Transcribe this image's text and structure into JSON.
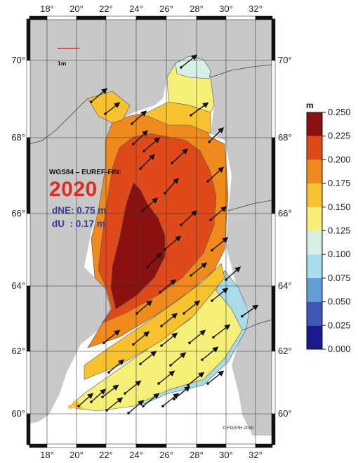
{
  "map": {
    "datum": "WGS84 – EUREF-FIN:",
    "year": "2020",
    "dne": "dNE: 0.75 m",
    "du": "dU  : 0.17 m",
    "scale_bar": "1m",
    "credit": "© FGI/PH 2020",
    "lon_ticks": [
      "18°",
      "20°",
      "22°",
      "24°",
      "26°",
      "28°",
      "30°",
      "32°"
    ],
    "lat_ticks": [
      "70°",
      "68°",
      "66°",
      "64°",
      "62°",
      "60°"
    ],
    "colorbar": {
      "unit": "m",
      "ticks": [
        "0.250",
        "0.225",
        "0.200",
        "0.175",
        "0.150",
        "0.125",
        "0.100",
        "0.075",
        "0.050",
        "0.025",
        "0.000"
      ],
      "range": [
        0.0,
        0.25
      ],
      "bands": [
        {
          "from": 0.0,
          "to": 0.025,
          "color": "#1a1a8c"
        },
        {
          "from": 0.025,
          "to": 0.05,
          "color": "#3f56b5"
        },
        {
          "from": 0.05,
          "to": 0.075,
          "color": "#5f9fd6"
        },
        {
          "from": 0.075,
          "to": 0.1,
          "color": "#a9dcea"
        },
        {
          "from": 0.1,
          "to": 0.125,
          "color": "#d8efe6"
        },
        {
          "from": 0.125,
          "to": 0.15,
          "color": "#f6f078"
        },
        {
          "from": 0.15,
          "to": 0.175,
          "color": "#f8c12e"
        },
        {
          "from": 0.175,
          "to": 0.2,
          "color": "#f08a1c"
        },
        {
          "from": 0.2,
          "to": 0.225,
          "color": "#e04a1a"
        },
        {
          "from": 0.225,
          "to": 0.25,
          "color": "#8b1010"
        }
      ]
    },
    "colors": {
      "land": "#c8c8c8",
      "sea": "#ffffff",
      "border": "#555555",
      "arrow": "#111111",
      "year": "#e02b20",
      "stats": "#3a3a9a"
    }
  }
}
